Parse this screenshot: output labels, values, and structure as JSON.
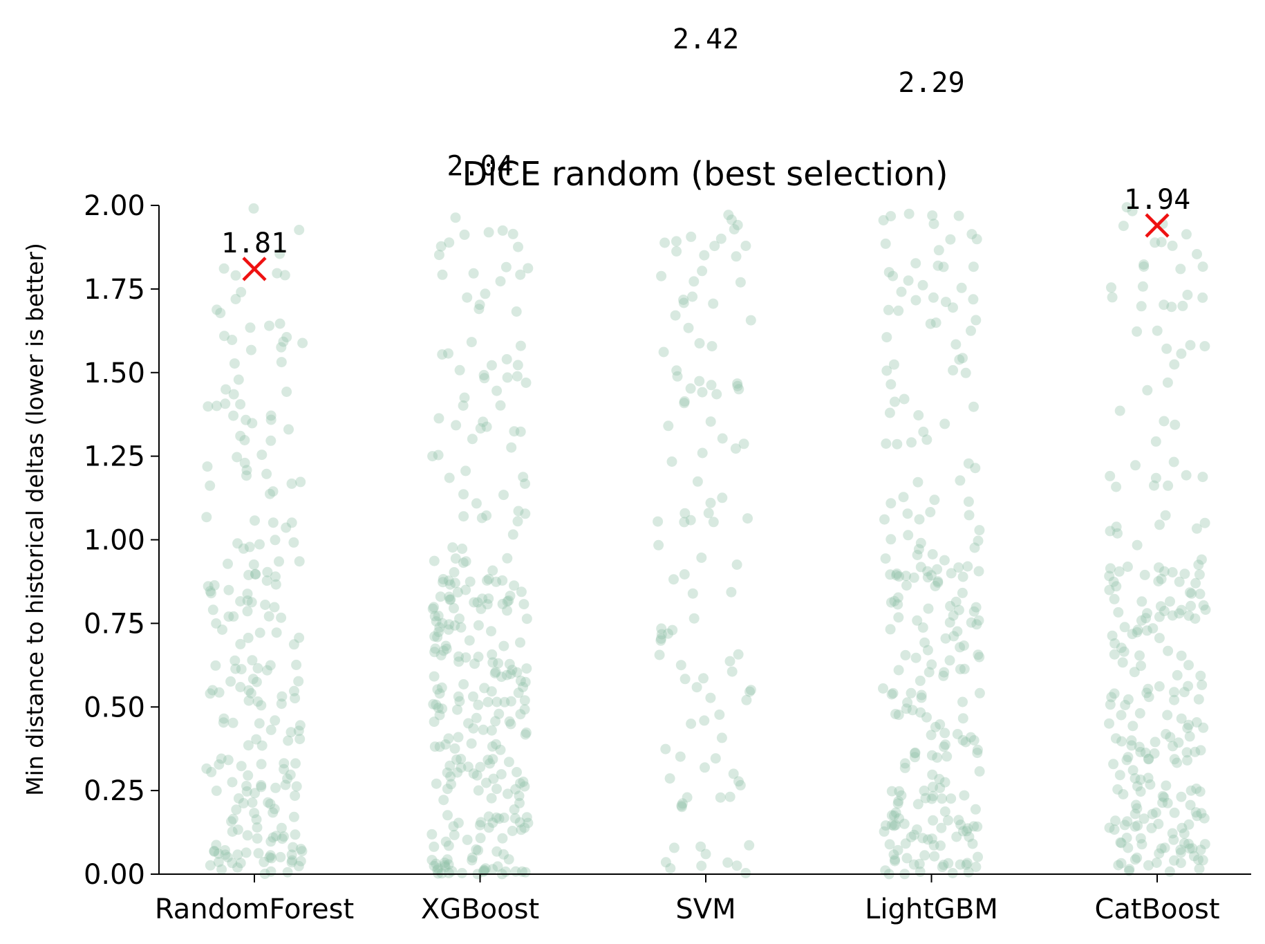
{
  "chart_data": {
    "type": "scatter",
    "subtype": "strip",
    "title": "DiCE random (best selection)",
    "xlabel": "",
    "ylabel": "Min distance to historical deltas (lower is better)",
    "ylim": [
      0,
      2.0
    ],
    "yticks": [
      "0.00",
      "0.25",
      "0.50",
      "0.75",
      "1.00",
      "1.25",
      "1.50",
      "1.75",
      "2.00"
    ],
    "categories": [
      "RandomForest",
      "XGBoost",
      "SVM",
      "LightGBM",
      "CatBoost"
    ],
    "point_color": "#8fbfa6",
    "marker_color": "#ee1111",
    "best_values": [
      1.81,
      2.04,
      2.42,
      2.29,
      1.94
    ],
    "best_labels": [
      "1.81",
      "2.04",
      "2.42",
      "2.29",
      "1.94"
    ],
    "points_per_category": [
      220,
      290,
      110,
      250,
      240
    ],
    "legend": "none",
    "grid": false
  }
}
